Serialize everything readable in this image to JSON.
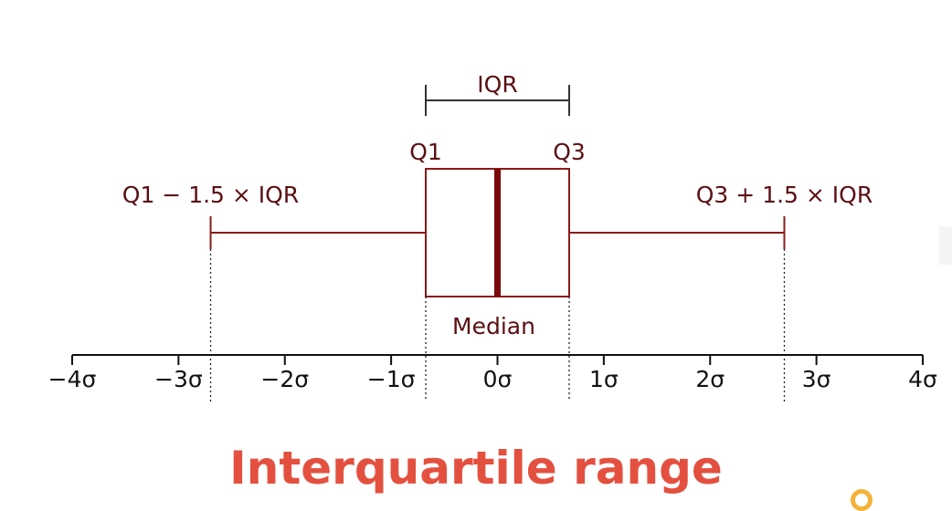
{
  "colors": {
    "box": "#8b1a1a",
    "median": "#7a0a0a",
    "label": "#5b0f12",
    "axis": "#111111",
    "bracket": "#333333",
    "title": "#e4503f",
    "ring": "#f3b23a"
  },
  "labels": {
    "iqr": "IQR",
    "q1": "Q1",
    "q3": "Q3",
    "lower_fence": "Q1 − 1.5 × IQR",
    "upper_fence": "Q3 + 1.5 × IQR",
    "median": "Median"
  },
  "title": "Interquartile range",
  "chart_data": {
    "type": "box",
    "xlim": [
      -4,
      4
    ],
    "ticks": [
      {
        "value": -4,
        "label": "−4σ"
      },
      {
        "value": -3,
        "label": "−3σ"
      },
      {
        "value": -2,
        "label": "−2σ"
      },
      {
        "value": -1,
        "label": "−1σ"
      },
      {
        "value": 0,
        "label": "0σ"
      },
      {
        "value": 1,
        "label": "1σ"
      },
      {
        "value": 2,
        "label": "2σ"
      },
      {
        "value": 3,
        "label": "3σ"
      },
      {
        "value": 4,
        "label": "4σ"
      }
    ],
    "q1": -0.6745,
    "median": 0,
    "q3": 0.6745,
    "lower_whisker": -2.698,
    "upper_whisker": 2.698
  }
}
